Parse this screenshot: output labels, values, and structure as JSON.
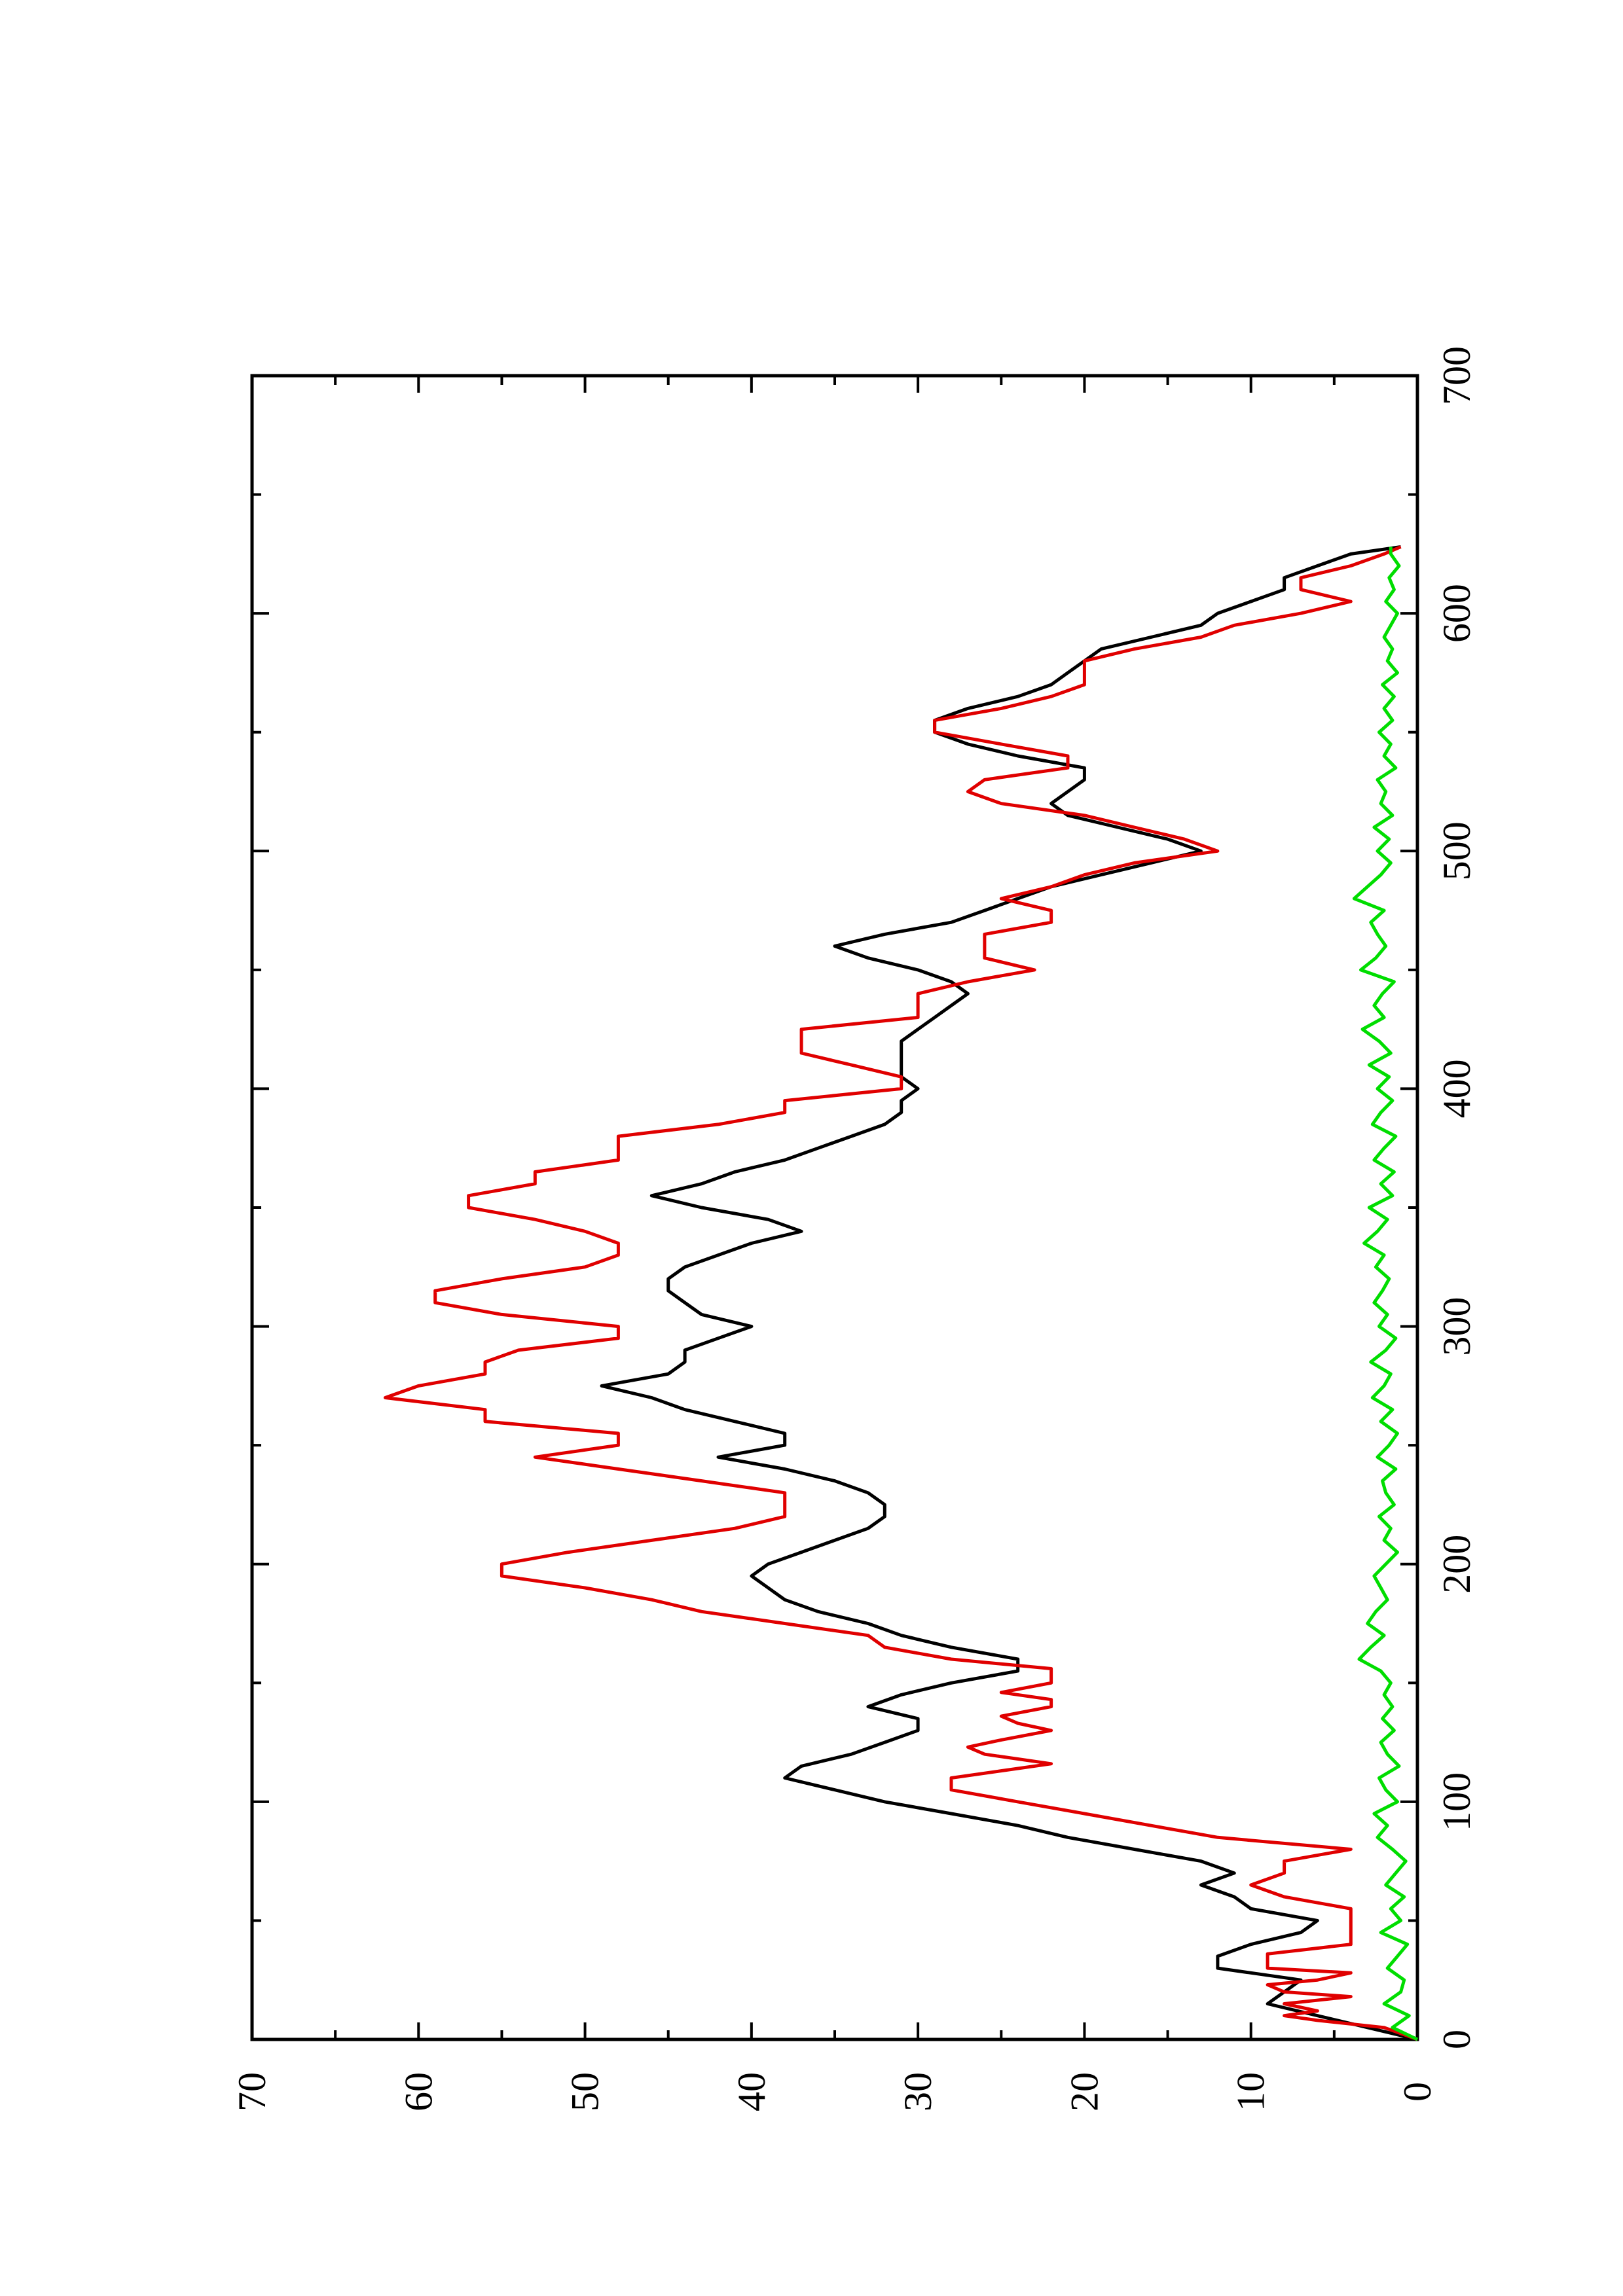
{
  "chart_data": {
    "type": "line",
    "title": "",
    "xlabel": "",
    "ylabel": "",
    "orientation": "rotated 90 degrees counter-clockwise (page is landscape plot printed on portrait sheet)",
    "xlim": [
      0,
      700
    ],
    "ylim": [
      0,
      70
    ],
    "x_ticks": [
      0,
      100,
      200,
      300,
      400,
      500,
      600,
      700
    ],
    "x_tick_labels": [
      "0",
      "100",
      "200",
      "300",
      "400",
      "500",
      "600",
      "700"
    ],
    "y_ticks": [
      0,
      10,
      20,
      30,
      40,
      50,
      60,
      70
    ],
    "y_tick_labels": [
      "0",
      "10",
      "20",
      "30",
      "40",
      "50",
      "60",
      "70"
    ],
    "grid": false,
    "legend": "none",
    "colors": {
      "black": "#000000",
      "red": "#e00000",
      "green": "#00dd00",
      "axis": "#000000"
    },
    "series": [
      {
        "color": "black",
        "x": [
          0,
          5,
          10,
          15,
          20,
          25,
          30,
          35,
          40,
          45,
          50,
          55,
          60,
          65,
          70,
          75,
          80,
          85,
          90,
          95,
          100,
          105,
          110,
          115,
          120,
          125,
          130,
          135,
          140,
          145,
          150,
          155,
          160,
          165,
          170,
          175,
          180,
          185,
          190,
          195,
          200,
          205,
          210,
          215,
          220,
          225,
          230,
          235,
          240,
          245,
          250,
          255,
          260,
          265,
          270,
          275,
          280,
          285,
          290,
          295,
          300,
          305,
          310,
          315,
          320,
          325,
          330,
          335,
          340,
          345,
          350,
          355,
          360,
          365,
          370,
          375,
          380,
          385,
          390,
          395,
          400,
          405,
          410,
          415,
          420,
          425,
          430,
          435,
          440,
          445,
          450,
          455,
          460,
          465,
          470,
          475,
          480,
          485,
          490,
          495,
          500,
          505,
          510,
          515,
          520,
          525,
          530,
          535,
          540,
          545,
          550,
          555,
          560,
          565,
          570,
          575,
          580,
          585,
          590,
          595,
          600,
          605,
          610,
          615,
          620,
          625,
          628
        ],
        "y": [
          0,
          3,
          6,
          9,
          8,
          7,
          12,
          12,
          10,
          7,
          6,
          10,
          11,
          13,
          11,
          13,
          17,
          21,
          24,
          28,
          32,
          35,
          38,
          37,
          34,
          32,
          30,
          30,
          33,
          31,
          28,
          24,
          24,
          28,
          31,
          33,
          36,
          38,
          39,
          40,
          39,
          37,
          35,
          33,
          32,
          32,
          33,
          35,
          38,
          42,
          38,
          38,
          41,
          44,
          46,
          49,
          45,
          44,
          44,
          42,
          40,
          43,
          44,
          45,
          45,
          44,
          42,
          40,
          37,
          39,
          43,
          46,
          43,
          41,
          38,
          36,
          34,
          32,
          31,
          31,
          30,
          31,
          31,
          31,
          31,
          30,
          29,
          28,
          27,
          28,
          30,
          33,
          35,
          32,
          28,
          26,
          24,
          22,
          19,
          16,
          13,
          15,
          18,
          21,
          22,
          21,
          20,
          20,
          24,
          27,
          29,
          29,
          27,
          24,
          22,
          21,
          20,
          19,
          16,
          13,
          12,
          10,
          8,
          8,
          6,
          4,
          1
        ]
      },
      {
        "color": "red",
        "x": [
          0,
          5,
          8,
          10,
          12,
          15,
          18,
          20,
          23,
          25,
          28,
          30,
          33,
          36,
          40,
          45,
          50,
          55,
          60,
          65,
          70,
          75,
          80,
          85,
          90,
          95,
          100,
          105,
          110,
          113,
          116,
          120,
          123,
          126,
          130,
          133,
          136,
          140,
          143,
          146,
          150,
          153,
          156,
          160,
          165,
          170,
          175,
          180,
          185,
          190,
          195,
          200,
          205,
          210,
          215,
          220,
          225,
          230,
          235,
          240,
          245,
          250,
          255,
          260,
          265,
          270,
          275,
          280,
          285,
          290,
          295,
          300,
          305,
          310,
          315,
          320,
          325,
          330,
          335,
          340,
          345,
          350,
          355,
          360,
          365,
          370,
          375,
          380,
          385,
          390,
          395,
          400,
          405,
          410,
          415,
          420,
          425,
          430,
          435,
          440,
          445,
          450,
          455,
          460,
          465,
          470,
          475,
          480,
          485,
          490,
          495,
          500,
          505,
          510,
          515,
          520,
          525,
          530,
          535,
          540,
          545,
          550,
          555,
          560,
          565,
          570,
          575,
          580,
          585,
          590,
          595,
          600,
          605,
          610,
          615,
          620,
          625,
          628
        ],
        "y": [
          0,
          2,
          6,
          8,
          6,
          8,
          4,
          8,
          9,
          6,
          4,
          9,
          9,
          9,
          4,
          4,
          4,
          4,
          8,
          10,
          8,
          8,
          4,
          12,
          16,
          20,
          24,
          28,
          28,
          25,
          22,
          26,
          27,
          25,
          22,
          24,
          25,
          22,
          22,
          25,
          22,
          22,
          22,
          28,
          32,
          33,
          38,
          43,
          46,
          50,
          55,
          55,
          51,
          46,
          41,
          38,
          38,
          38,
          43,
          48,
          53,
          48,
          48,
          56,
          56,
          62,
          60,
          56,
          56,
          54,
          48,
          48,
          55,
          59,
          59,
          55,
          50,
          48,
          48,
          50,
          53,
          57,
          57,
          53,
          53,
          48,
          48,
          48,
          42,
          38,
          38,
          31,
          31,
          34,
          37,
          37,
          37,
          30,
          30,
          30,
          27,
          23,
          26,
          26,
          26,
          22,
          22,
          25,
          22,
          20,
          17,
          12,
          14,
          17,
          20,
          25,
          27,
          26,
          21,
          21,
          25,
          29,
          29,
          25,
          22,
          20,
          20,
          20,
          17,
          13,
          11,
          7,
          4,
          7,
          7,
          4,
          2,
          1
        ]
      },
      {
        "color": "green",
        "x": [
          0,
          5,
          10,
          15,
          20,
          25,
          30,
          35,
          40,
          45,
          50,
          55,
          60,
          65,
          70,
          75,
          80,
          85,
          90,
          95,
          100,
          105,
          110,
          115,
          120,
          125,
          130,
          135,
          140,
          145,
          150,
          155,
          160,
          165,
          170,
          175,
          180,
          185,
          190,
          195,
          200,
          205,
          210,
          215,
          220,
          225,
          230,
          235,
          240,
          245,
          250,
          255,
          260,
          265,
          270,
          275,
          280,
          285,
          290,
          295,
          300,
          305,
          310,
          315,
          320,
          325,
          330,
          335,
          340,
          345,
          350,
          355,
          360,
          365,
          370,
          375,
          380,
          385,
          390,
          395,
          400,
          405,
          410,
          415,
          420,
          425,
          430,
          435,
          440,
          445,
          450,
          455,
          460,
          465,
          470,
          475,
          480,
          485,
          490,
          495,
          500,
          505,
          510,
          515,
          520,
          525,
          530,
          535,
          540,
          545,
          550,
          555,
          560,
          565,
          570,
          575,
          580,
          585,
          590,
          595,
          600,
          605,
          610,
          615,
          620,
          625,
          628
        ],
        "y": [
          0,
          1.5,
          0.5,
          2,
          1,
          0.8,
          1.8,
          1.2,
          0.6,
          2.2,
          1,
          1.6,
          0.8,
          1.9,
          1.3,
          0.7,
          1.5,
          2.4,
          1.8,
          2.6,
          1.2,
          1.9,
          2.3,
          1.1,
          1.8,
          2.2,
          1.4,
          2.1,
          1.5,
          2.0,
          1.6,
          2.2,
          3.5,
          2.8,
          2.0,
          3.0,
          2.5,
          1.8,
          2.2,
          2.6,
          1.9,
          1.2,
          2.0,
          1.6,
          2.3,
          1.4,
          1.9,
          2.1,
          1.3,
          2.4,
          1.7,
          1.2,
          2.2,
          1.5,
          2.7,
          2.0,
          1.6,
          2.8,
          1.9,
          1.3,
          2.3,
          1.8,
          2.6,
          2.1,
          1.7,
          2.5,
          2.0,
          3.2,
          2.4,
          1.8,
          2.9,
          1.5,
          2.2,
          1.4,
          2.6,
          2.0,
          1.3,
          2.7,
          2.2,
          1.5,
          2.4,
          1.7,
          2.9,
          1.6,
          2.3,
          3.3,
          2.0,
          2.6,
          2.1,
          1.4,
          3.4,
          2.5,
          1.9,
          2.4,
          2.8,
          2.0,
          3.8,
          3.0,
          2.2,
          1.6,
          2.4,
          1.7,
          2.6,
          1.5,
          2.2,
          1.9,
          2.4,
          1.3,
          2.0,
          1.6,
          2.3,
          1.5,
          2.0,
          1.4,
          2.1,
          1.2,
          1.8,
          1.5,
          2.0,
          1.6,
          1.2,
          1.9,
          1.4,
          1.7,
          1.1,
          1.6,
          1.6
        ]
      }
    ]
  }
}
